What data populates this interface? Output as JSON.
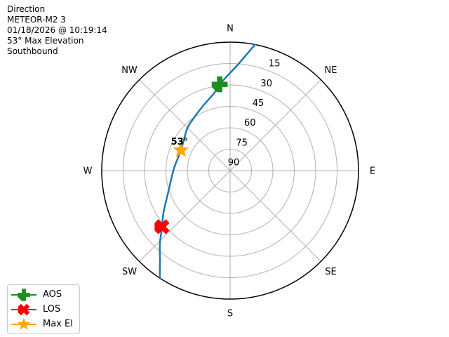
{
  "header": {
    "lines": [
      "Direction",
      "METEOR-M2 3",
      "01/18/2026 @ 10:19:14",
      "53° Max Elevation",
      "Southbound"
    ]
  },
  "chart_data": {
    "type": "polar_satellite_pass",
    "satellite": "METEOR-M2 3",
    "timestamp": "01/18/2026 @ 10:19:14",
    "max_elevation_deg": 53,
    "pass_direction": "Southbound",
    "compass_labels": [
      "N",
      "NE",
      "E",
      "SE",
      "S",
      "SW",
      "W",
      "NW"
    ],
    "elevation_ticks_deg": [
      15,
      30,
      45,
      60,
      75,
      90
    ],
    "elevation_tick_labels": [
      "15",
      "30",
      "45",
      "60",
      "75",
      "90"
    ],
    "tick_label_azimuth_deg": 22.5,
    "radial_range_deg": [
      0,
      90
    ],
    "grid": true,
    "trajectory_az_el_deg": [
      [
        11.2,
        0.0
      ],
      [
        4.5,
        15.0
      ],
      [
        353.1,
        29.1
      ],
      [
        348.2,
        34.7
      ],
      [
        337.8,
        40.6
      ],
      [
        326.1,
        45.0
      ],
      [
        314.5,
        47.9
      ],
      [
        292.5,
        52.7
      ],
      [
        272.1,
        50.6
      ],
      [
        251.2,
        44.3
      ],
      [
        237.7,
        34.7
      ],
      [
        230.5,
        28.2
      ],
      [
        223.9,
        19.0
      ],
      [
        218.2,
        10.5
      ],
      [
        213.2,
        0.0
      ]
    ],
    "markers": [
      {
        "id": "aos",
        "label": "AOS",
        "shape": "plus",
        "color": "#1e8c1e",
        "azimuth_deg": 353.1,
        "elevation_deg": 29.1
      },
      {
        "id": "los",
        "label": "LOS",
        "shape": "x",
        "color": "#fe0000",
        "azimuth_deg": 230.5,
        "elevation_deg": 28.2
      },
      {
        "id": "max-el",
        "label": "Max El",
        "shape": "star",
        "color": "#ffa500",
        "azimuth_deg": 292.5,
        "elevation_deg": 52.7,
        "annotation": "53°"
      }
    ],
    "colors": {
      "trajectory": "#1f77b4",
      "grid": "#b0b0b0",
      "outer_ring": "#000000",
      "text": "#000000"
    }
  },
  "legend": {
    "items": [
      {
        "id": "aos",
        "label": "AOS",
        "shape": "plus",
        "color": "#1e8c1e"
      },
      {
        "id": "los",
        "label": "LOS",
        "shape": "x",
        "color": "#fe0000"
      },
      {
        "id": "max-el",
        "label": "Max El",
        "shape": "star",
        "color": "#ffa500"
      }
    ]
  }
}
